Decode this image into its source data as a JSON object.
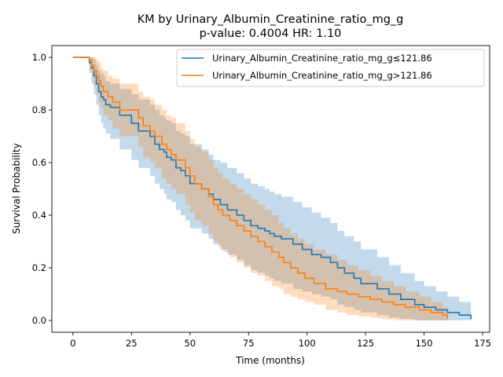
{
  "chart_data": {
    "type": "line",
    "title": "KM by Urinary_Albumin_Creatinine_ratio_mg_g",
    "subtitle": "p-value: 0.4004  HR: 1.10",
    "xlabel": "Time (months)",
    "ylabel": "Survival Probability",
    "xlim": [
      -9,
      178
    ],
    "ylim": [
      -0.045,
      1.045
    ],
    "xticks": [
      0,
      25,
      50,
      75,
      100,
      125,
      150,
      175
    ],
    "yticks": [
      0.0,
      0.2,
      0.4,
      0.6,
      0.8,
      1.0
    ],
    "legend_position": "top-right",
    "grid": false,
    "series": [
      {
        "name": "Urinary_Albumin_Creatinine_ratio_mg_g≤121.86",
        "color": "#1f77b4",
        "band_color": "#1f77b4",
        "x": [
          0,
          6,
          7,
          8,
          9,
          10,
          11,
          12,
          13,
          14,
          16,
          20,
          25,
          28,
          33,
          35,
          37,
          39,
          40,
          42,
          44,
          46,
          48,
          50,
          55,
          58,
          60,
          63,
          66,
          70,
          73,
          76,
          79,
          82,
          84,
          86,
          89,
          94,
          98,
          102,
          106,
          110,
          113,
          116,
          120,
          123,
          130,
          135,
          140,
          146,
          150,
          155,
          160,
          165,
          170
        ],
        "y": [
          1.0,
          1.0,
          0.98,
          0.96,
          0.93,
          0.9,
          0.87,
          0.85,
          0.84,
          0.82,
          0.81,
          0.78,
          0.75,
          0.72,
          0.7,
          0.67,
          0.65,
          0.64,
          0.62,
          0.61,
          0.58,
          0.57,
          0.55,
          0.52,
          0.5,
          0.48,
          0.46,
          0.44,
          0.42,
          0.4,
          0.38,
          0.36,
          0.35,
          0.34,
          0.33,
          0.32,
          0.31,
          0.29,
          0.27,
          0.25,
          0.24,
          0.22,
          0.2,
          0.18,
          0.16,
          0.14,
          0.12,
          0.1,
          0.08,
          0.06,
          0.05,
          0.04,
          0.03,
          0.02,
          0.005
        ],
        "lower": [
          1.0,
          1.0,
          0.94,
          0.9,
          0.86,
          0.82,
          0.78,
          0.75,
          0.73,
          0.71,
          0.69,
          0.65,
          0.61,
          0.58,
          0.55,
          0.52,
          0.5,
          0.48,
          0.46,
          0.45,
          0.42,
          0.4,
          0.38,
          0.35,
          0.33,
          0.31,
          0.29,
          0.27,
          0.25,
          0.23,
          0.21,
          0.19,
          0.18,
          0.17,
          0.16,
          0.15,
          0.14,
          0.12,
          0.11,
          0.1,
          0.09,
          0.08,
          0.06,
          0.05,
          0.04,
          0.03,
          0.02,
          0.01,
          0.005,
          0.0,
          0.0,
          0.0,
          0.0,
          0.0,
          0.0
        ],
        "upper": [
          1.0,
          1.0,
          1.0,
          1.0,
          0.99,
          0.97,
          0.95,
          0.94,
          0.93,
          0.91,
          0.9,
          0.88,
          0.86,
          0.84,
          0.82,
          0.8,
          0.78,
          0.77,
          0.76,
          0.75,
          0.72,
          0.71,
          0.7,
          0.67,
          0.65,
          0.63,
          0.61,
          0.6,
          0.58,
          0.56,
          0.54,
          0.52,
          0.51,
          0.5,
          0.49,
          0.48,
          0.47,
          0.45,
          0.43,
          0.41,
          0.39,
          0.37,
          0.34,
          0.32,
          0.3,
          0.27,
          0.24,
          0.21,
          0.18,
          0.15,
          0.13,
          0.11,
          0.09,
          0.07,
          0.05
        ]
      },
      {
        "name": "Urinary_Albumin_Creatinine_ratio_mg_g>121.86",
        "color": "#ff7f0e",
        "band_color": "#ff7f0e",
        "x": [
          0,
          7,
          8,
          9,
          10,
          11,
          12,
          13,
          15,
          17,
          20,
          28,
          30,
          33,
          35,
          38,
          40,
          42,
          44,
          48,
          50,
          52,
          55,
          58,
          60,
          62,
          64,
          67,
          70,
          73,
          76,
          79,
          82,
          85,
          88,
          90,
          93,
          96,
          99,
          103,
          108,
          113,
          117,
          122,
          127,
          132,
          137,
          142,
          148,
          153,
          158,
          160
        ],
        "y": [
          1.0,
          0.99,
          0.97,
          0.95,
          0.93,
          0.91,
          0.89,
          0.87,
          0.85,
          0.83,
          0.8,
          0.77,
          0.74,
          0.72,
          0.7,
          0.67,
          0.65,
          0.63,
          0.61,
          0.58,
          0.55,
          0.52,
          0.5,
          0.47,
          0.44,
          0.42,
          0.4,
          0.38,
          0.36,
          0.34,
          0.32,
          0.3,
          0.28,
          0.26,
          0.24,
          0.22,
          0.2,
          0.18,
          0.16,
          0.14,
          0.12,
          0.11,
          0.1,
          0.09,
          0.08,
          0.07,
          0.06,
          0.05,
          0.04,
          0.03,
          0.02,
          0.005
        ],
        "lower": [
          1.0,
          0.95,
          0.92,
          0.89,
          0.86,
          0.83,
          0.81,
          0.78,
          0.76,
          0.73,
          0.7,
          0.66,
          0.62,
          0.6,
          0.58,
          0.54,
          0.52,
          0.5,
          0.48,
          0.44,
          0.41,
          0.38,
          0.36,
          0.33,
          0.3,
          0.28,
          0.26,
          0.24,
          0.22,
          0.2,
          0.18,
          0.17,
          0.15,
          0.13,
          0.12,
          0.1,
          0.09,
          0.08,
          0.07,
          0.06,
          0.04,
          0.03,
          0.02,
          0.015,
          0.01,
          0.005,
          0.0,
          0.0,
          0.0,
          0.0,
          0.0,
          0.0
        ],
        "upper": [
          1.0,
          1.0,
          1.0,
          1.0,
          0.99,
          0.98,
          0.96,
          0.95,
          0.93,
          0.92,
          0.9,
          0.87,
          0.85,
          0.84,
          0.82,
          0.8,
          0.78,
          0.77,
          0.75,
          0.72,
          0.69,
          0.66,
          0.64,
          0.61,
          0.58,
          0.56,
          0.54,
          0.52,
          0.5,
          0.48,
          0.46,
          0.44,
          0.42,
          0.4,
          0.37,
          0.35,
          0.33,
          0.31,
          0.29,
          0.27,
          0.25,
          0.23,
          0.21,
          0.19,
          0.17,
          0.15,
          0.13,
          0.11,
          0.09,
          0.07,
          0.05,
          0.03
        ]
      }
    ]
  }
}
